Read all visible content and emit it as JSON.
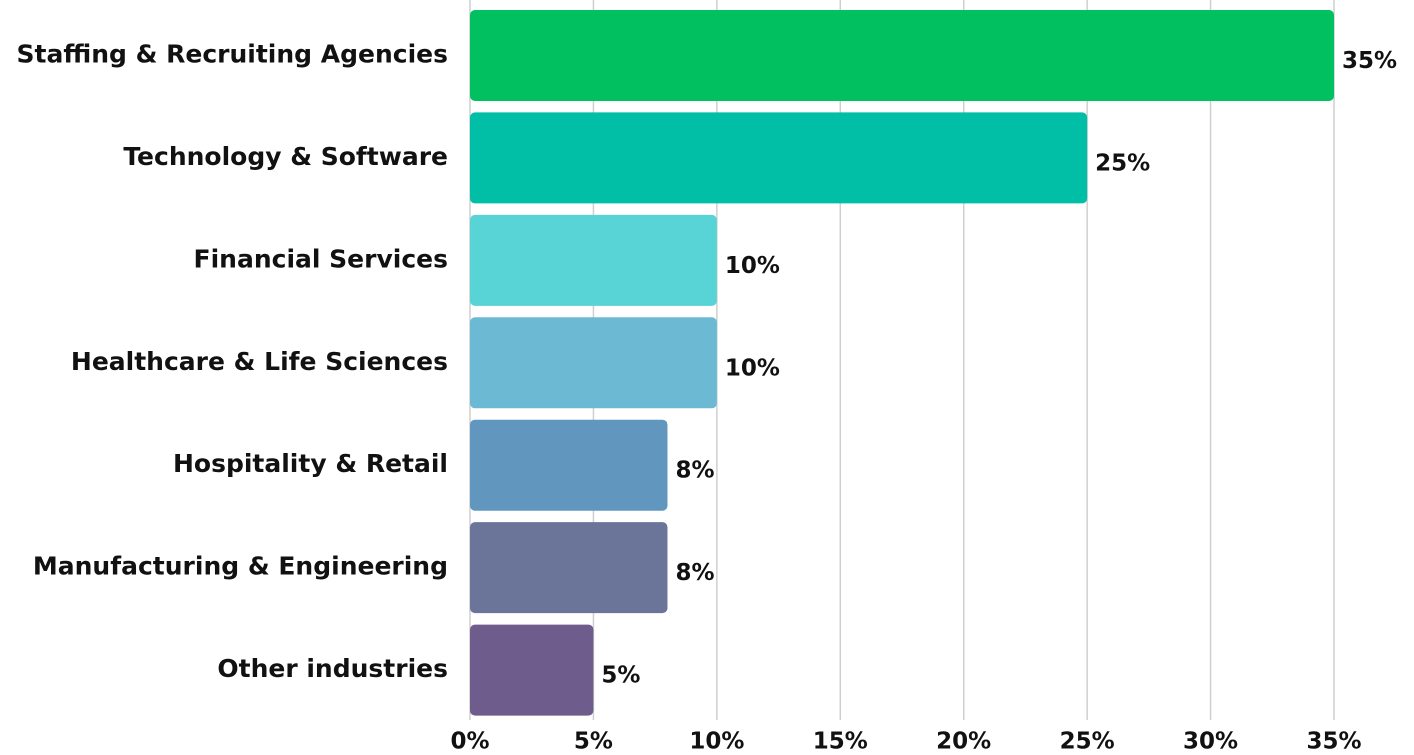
{
  "chart_data": {
    "type": "bar",
    "orientation": "horizontal",
    "categories": [
      "Staffing & Recruiting Agencies",
      "Technology & Software",
      "Financial Services",
      "Healthcare & Life Sciences",
      "Hospitality & Retail",
      "Manufacturing & Engineering",
      "Other industries"
    ],
    "values": [
      35,
      25,
      10,
      10,
      8,
      8,
      5
    ],
    "value_labels": [
      "35%",
      "25%",
      "10%",
      "10%",
      "8%",
      "8%",
      "5%"
    ],
    "colors": [
      "#00c060",
      "#00bfa6",
      "#58d3d6",
      "#6cb9d3",
      "#6196bf",
      "#6a7599",
      "#6e5c8c"
    ],
    "xlim": [
      0,
      35
    ],
    "xticks": [
      {
        "value": 0,
        "label": "0%"
      },
      {
        "value": 5,
        "label": "5%"
      },
      {
        "value": 10,
        "label": "10%"
      },
      {
        "value": 15,
        "label": "15%"
      },
      {
        "value": 20,
        "label": "20%"
      },
      {
        "value": 25,
        "label": "25%"
      },
      {
        "value": 30,
        "label": "30%"
      },
      {
        "value": 35,
        "label": "35%"
      }
    ],
    "grid": true
  }
}
